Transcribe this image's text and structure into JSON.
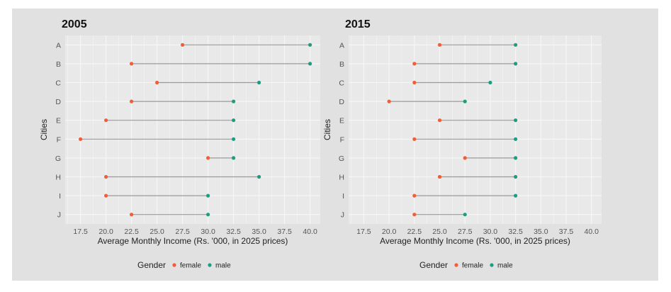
{
  "colors": {
    "female": "#f25c36",
    "male": "#1a9e82",
    "segment": "#9a9a9a",
    "panel_bg": "#e9e9e9",
    "grid": "#f7f7f7"
  },
  "legend": {
    "title": "Gender",
    "entries": [
      {
        "key": "female",
        "label": "female"
      },
      {
        "key": "male",
        "label": "male"
      }
    ]
  },
  "chart_data": [
    {
      "type": "dumbbell",
      "title": "2005",
      "xlabel": "Average Monthly Income (Rs. '000, in 2025 prices)",
      "ylabel": "Cities",
      "xlim": [
        16,
        41
      ],
      "xticks": [
        "17.5",
        "20.0",
        "22.5",
        "25.0",
        "27.5",
        "30.0",
        "32.5",
        "35.0",
        "37.5",
        "40.0"
      ],
      "categories": [
        "A",
        "B",
        "C",
        "D",
        "E",
        "F",
        "G",
        "H",
        "I",
        "J"
      ],
      "series": [
        {
          "name": "female",
          "values": [
            27.5,
            22.5,
            25.0,
            22.5,
            20.0,
            17.5,
            30.0,
            20.0,
            20.0,
            22.5
          ]
        },
        {
          "name": "male",
          "values": [
            40.0,
            40.0,
            35.0,
            32.5,
            32.5,
            32.5,
            32.5,
            35.0,
            30.0,
            30.0
          ]
        }
      ]
    },
    {
      "type": "dumbbell",
      "title": "2015",
      "xlabel": "Average Monthly Income (Rs. '000, in 2025 prices)",
      "ylabel": "Cities",
      "xlim": [
        16,
        41
      ],
      "xticks": [
        "17.5",
        "20.0",
        "22.5",
        "25.0",
        "27.5",
        "30.0",
        "32.5",
        "35.0",
        "37.5",
        "40.0"
      ],
      "categories": [
        "A",
        "B",
        "C",
        "D",
        "E",
        "F",
        "G",
        "H",
        "I",
        "J"
      ],
      "series": [
        {
          "name": "female",
          "values": [
            25.0,
            22.5,
            22.5,
            20.0,
            25.0,
            22.5,
            27.5,
            25.0,
            22.5,
            22.5
          ]
        },
        {
          "name": "male",
          "values": [
            32.5,
            32.5,
            30.0,
            27.5,
            32.5,
            32.5,
            32.5,
            32.5,
            32.5,
            27.5
          ]
        }
      ]
    }
  ]
}
